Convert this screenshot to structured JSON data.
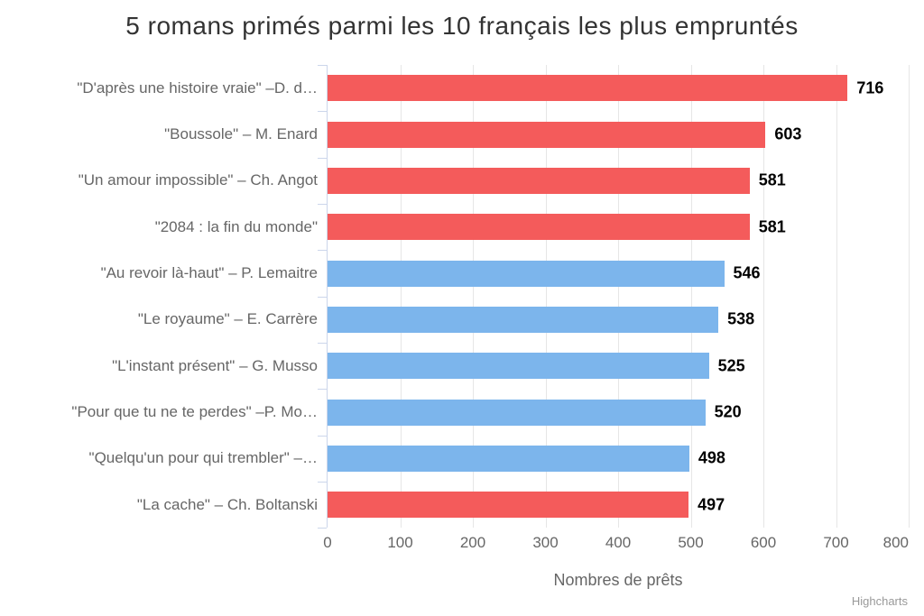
{
  "title": "5 romans primés parmi les 10 français les plus empruntés",
  "credits": "Highcharts",
  "colors": {
    "awarded_bar": "#f45b5b",
    "regular_bar": "#7cb5ec",
    "gridline": "#e6e6e6",
    "axis_line": "#ccd6eb",
    "label_gray": "#666666",
    "title_gray": "#333333"
  },
  "chart_data": {
    "type": "bar",
    "orientation": "horizontal",
    "title": "5 romans primés parmi les 10 français les plus empruntés",
    "xlabel": "Nombres de prêts",
    "categories": [
      "\"D'après une histoire vraie\" –D. d…",
      "\"Boussole\" – M. Enard",
      "\"Un amour impossible\" – Ch. Angot",
      "\"2084 : la fin du monde\"",
      "\"Au revoir là-haut\" – P. Lemaitre",
      "\"Le royaume\" – E. Carrère",
      "\"L'instant présent\" – G. Musso",
      "\"Pour que tu ne te perdes\" –P. Mo…",
      "\"Quelqu'un pour qui trembler\" –…",
      "\"La cache\" – Ch. Boltanski"
    ],
    "values": [
      716,
      603,
      581,
      581,
      546,
      538,
      525,
      520,
      498,
      497
    ],
    "bar_colors": [
      "#f45b5b",
      "#f45b5b",
      "#f45b5b",
      "#f45b5b",
      "#7cb5ec",
      "#7cb5ec",
      "#7cb5ec",
      "#7cb5ec",
      "#7cb5ec",
      "#f45b5b"
    ],
    "xlim": [
      0,
      800
    ],
    "xticks": [
      0,
      100,
      200,
      300,
      400,
      500,
      600,
      700,
      800
    ],
    "grid": true,
    "legend": false
  }
}
